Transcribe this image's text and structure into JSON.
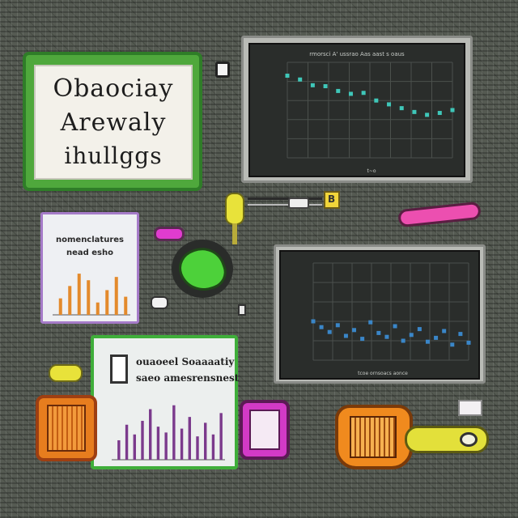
{
  "sign": {
    "line1": "Obaociay",
    "line2": "Arewaly",
    "line3": "ihullggs"
  },
  "monitor_top": {
    "title": "rmorsci A' ussrao Aas aast s oaus",
    "xlabel": "t~o"
  },
  "monitor_mid": {
    "title": "",
    "xlabel": "tcoe ornsoacs aonce"
  },
  "doc_small": {
    "title_line1": "nomenclatures",
    "title_line2": "nead esho"
  },
  "doc_big": {
    "title_line1": "ouaoeel Soaaaatiy",
    "title_line2": "saeo amesrensnest"
  },
  "sticky_label": "B",
  "colors": {
    "board": "#555a52",
    "sign_green": "#4fa83c",
    "screen": "#2a2d2b",
    "cyan_point": "#3fc7b9",
    "blue_point": "#3a86c8",
    "bar_orange": "#e38a2c",
    "bar_purple": "#7b3a8c",
    "magenta": "#e03ccf",
    "yellow": "#e8e23a",
    "orange": "#f08a1e"
  },
  "chart_data": [
    {
      "type": "scatter",
      "series": [
        {
          "x": [
            1,
            2,
            3,
            4,
            5,
            6,
            7,
            8,
            9,
            10,
            11,
            12,
            13,
            14
          ],
          "y": [
            8.6,
            8.2,
            7.6,
            7.5,
            7.0,
            6.7,
            6.8,
            6.0,
            5.6,
            5.2,
            4.8,
            4.5,
            4.7,
            5.0
          ]
        }
      ],
      "grid": true
    },
    {
      "type": "scatter",
      "series": [
        {
          "x": [
            1,
            2,
            3,
            4,
            5,
            6,
            7,
            8,
            9,
            10,
            11,
            12,
            13,
            14,
            15,
            16,
            17,
            18,
            19,
            20
          ],
          "y": [
            4.0,
            3.4,
            2.9,
            3.6,
            2.5,
            3.1,
            2.2,
            3.9,
            2.8,
            2.4,
            3.5,
            2.0,
            2.6,
            3.2,
            1.9,
            2.3,
            3.0,
            1.6,
            2.7,
            1.8
          ]
        }
      ],
      "grid": true
    },
    {
      "type": "bar",
      "values": [
        2.0,
        3.5,
        5.0,
        4.2,
        1.5,
        3.0,
        4.6,
        2.2
      ]
    },
    {
      "type": "bar",
      "values": [
        2.0,
        3.6,
        2.6,
        4.0,
        5.2,
        3.4,
        2.8,
        5.6,
        3.2,
        4.4,
        2.4,
        3.8,
        2.6,
        4.8
      ]
    }
  ]
}
